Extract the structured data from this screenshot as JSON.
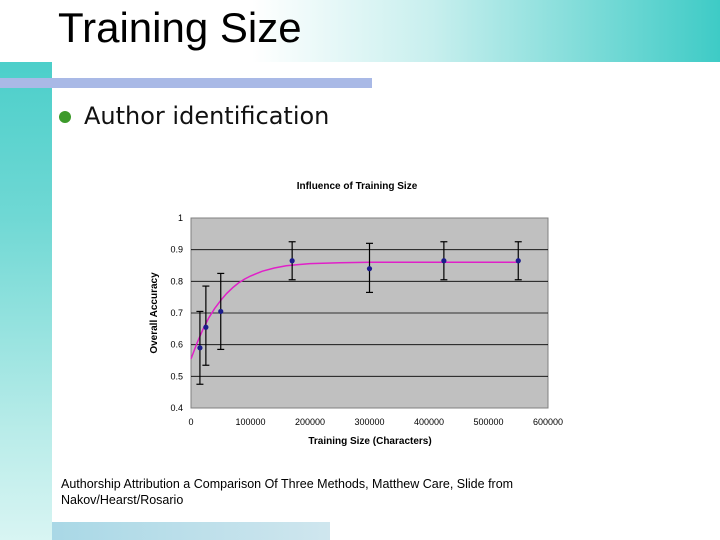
{
  "slide": {
    "title": "Training Size",
    "bullet": "Author identification",
    "caption": "Authorship Attribution a Comparison Of Three Methods, Matthew Care, Slide from Nakov/Hearst/Rosario"
  },
  "colors": {
    "accent": "#3ecbc6",
    "rule": "#a9b9e6",
    "bullet": "#3d9a2b",
    "plot_bg": "#c0c0c0",
    "fit_line": "#e020c8",
    "points": "#1c1c8c"
  },
  "chart_data": {
    "type": "scatter",
    "title": "Influence of Training Size",
    "xlabel": "Training Size (Characters)",
    "ylabel": "Overall Accuracy",
    "xlim": [
      0,
      600000
    ],
    "ylim": [
      0.4,
      1
    ],
    "xticks": [
      0,
      100000,
      200000,
      300000,
      400000,
      500000,
      600000
    ],
    "xtick_labels": [
      "0",
      "100000",
      "200000",
      "300000",
      "400000",
      "500000",
      "600000"
    ],
    "yticks": [
      0.4,
      0.5,
      0.6,
      0.7,
      0.8,
      0.9,
      1
    ],
    "ytick_labels": [
      "0.4",
      "0.5",
      "0.6",
      "0.7",
      "0.8",
      "0.9",
      "1"
    ],
    "grid": true,
    "series": [
      {
        "x": [
          15000,
          25000,
          50000,
          170000,
          300000,
          425000,
          550000
        ],
        "y": [
          0.59,
          0.655,
          0.705,
          0.865,
          0.84,
          0.865,
          0.865
        ],
        "error_low": [
          0.475,
          0.535,
          0.585,
          0.805,
          0.765,
          0.805,
          0.805
        ],
        "error_high": [
          0.705,
          0.785,
          0.825,
          0.925,
          0.92,
          0.925,
          0.925
        ]
      }
    ],
    "fit_curve": {
      "x": [
        0,
        10000,
        20000,
        30000,
        40000,
        50000,
        60000,
        70000,
        80000,
        90000,
        100000,
        120000,
        140000,
        160000,
        180000,
        200000,
        250000,
        300000,
        350000,
        400000,
        450000,
        500000,
        550000
      ],
      "y": [
        0.555,
        0.605,
        0.648,
        0.685,
        0.715,
        0.74,
        0.762,
        0.78,
        0.795,
        0.807,
        0.817,
        0.832,
        0.842,
        0.849,
        0.853,
        0.856,
        0.859,
        0.86,
        0.86,
        0.86,
        0.86,
        0.86,
        0.86
      ]
    }
  }
}
